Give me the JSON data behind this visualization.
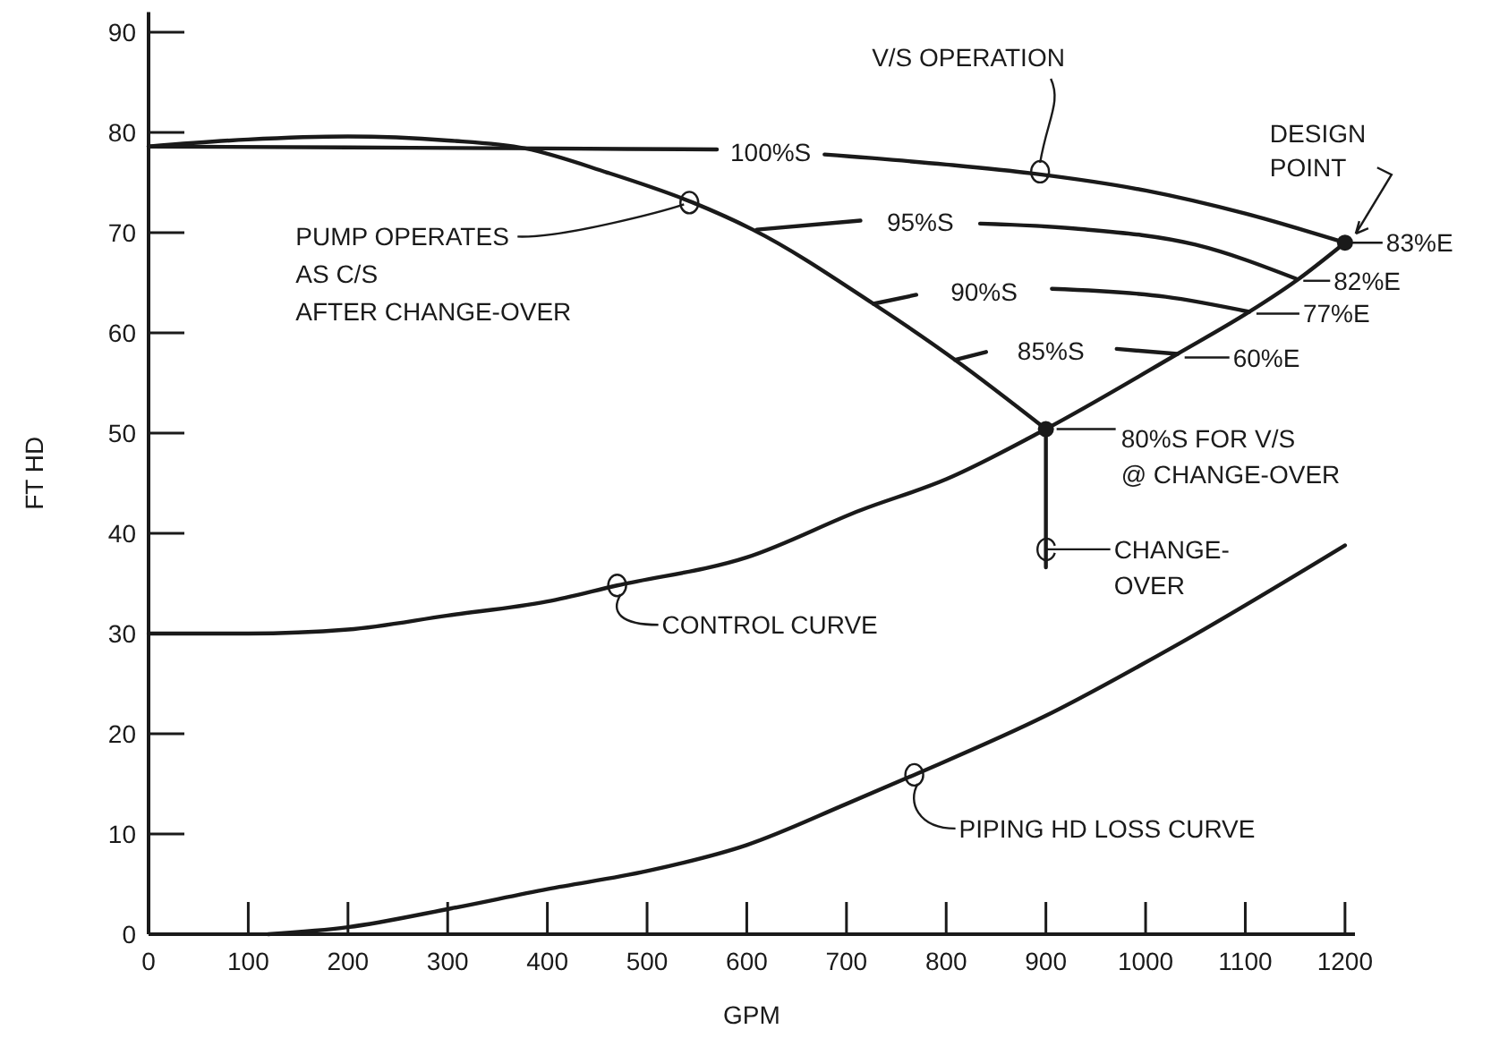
{
  "chart_data": {
    "type": "line",
    "xlabel": "GPM",
    "ylabel": "FT HD",
    "xlim": [
      0,
      1210
    ],
    "ylim": [
      0,
      92
    ],
    "xticks": [
      0,
      100,
      200,
      300,
      400,
      500,
      600,
      700,
      800,
      900,
      1000,
      1100,
      1200
    ],
    "yticks": [
      0,
      10,
      20,
      30,
      40,
      50,
      60,
      70,
      80,
      90
    ],
    "grid": false,
    "legend": false,
    "marker": "none",
    "line_style": "solid",
    "series": [
      {
        "color": "#1a1a1a",
        "x": [
          0,
          100,
          200,
          300,
          378,
          460,
          546,
          606,
          727,
          809,
          900
        ],
        "values": [
          78.6,
          79.3,
          79.6,
          79.2,
          78.4,
          76,
          73,
          70.3,
          62.9,
          57.3,
          50.4
        ]
      },
      {
        "name": "100%S",
        "color": "#1a1a1a",
        "x": [
          0,
          200,
          400,
          570,
          624,
          678,
          800,
          887,
          1000,
          1100,
          1200
        ],
        "values": [
          78.6,
          78.5,
          78.4,
          78.3,
          null,
          77.8,
          76.8,
          75.9,
          74.2,
          71.9,
          69
        ]
      },
      {
        "name": "95%S",
        "color": "#1a1a1a",
        "x": [
          610,
          714,
          774,
          834,
          930,
          1050,
          1151
        ],
        "values": [
          70.3,
          71.2,
          null,
          70.9,
          70.4,
          68.8,
          65.4
        ]
      },
      {
        "name": "90%S",
        "color": "#1a1a1a",
        "x": [
          727,
          770,
          838,
          906,
          1020,
          1104
        ],
        "values": [
          62.9,
          63.8,
          null,
          64.4,
          63.6,
          62.1
        ]
      },
      {
        "name": "85%S",
        "color": "#1a1a1a",
        "x": [
          809,
          840,
          905,
          971,
          1032
        ],
        "values": [
          57.3,
          58.1,
          null,
          58.4,
          57.9
        ]
      },
      {
        "color": "#1a1a1a",
        "x": [
          0,
          100,
          200,
          300,
          400,
          470,
          600,
          714,
          800,
          900,
          1032,
          1104,
          1151,
          1200
        ],
        "values": [
          30,
          30,
          30.4,
          31.8,
          33.2,
          34.8,
          37.6,
          42.3,
          45.4,
          50.4,
          57.9,
          62.1,
          65.2,
          69
        ]
      },
      {
        "color": "#1a1a1a",
        "x": [
          120,
          200,
          300,
          400,
          500,
          600,
          700,
          768,
          900,
          1032,
          1200
        ],
        "values": [
          0,
          0.7,
          2.5,
          4.5,
          6.3,
          8.9,
          13,
          15.9,
          21.8,
          28.9,
          38.8
        ]
      },
      {
        "color": "#1a1a1a",
        "x": [
          900,
          900
        ],
        "values": [
          50.4,
          36.6
        ]
      },
      {
        "type": "scatter",
        "marker": "circle",
        "color": "#1a1a1a",
        "x": [
          900,
          1200
        ],
        "values": [
          50.4,
          69
        ]
      }
    ],
    "annotations": [
      {
        "text": "V/S OPERATION",
        "x": 887,
        "y": 75.9
      },
      {
        "text": "DESIGN\nPOINT",
        "x": 1200,
        "y": 69
      },
      {
        "text": "PUMP OPERATES\nAS C/S\nAFTER CHANGE-OVER",
        "x": 546,
        "y": 73
      },
      {
        "text": "80%S FOR V/S\n@ CHANGE-OVER",
        "x": 900,
        "y": 50.4
      },
      {
        "text": "CHANGE-\nOVER",
        "x": 900,
        "y": 38.4
      },
      {
        "text": "CONTROL CURVE",
        "x": 470,
        "y": 34.8
      },
      {
        "text": "PIPING HD LOSS CURVE",
        "x": 768,
        "y": 15.9
      },
      {
        "text": "83%E",
        "x": 1200,
        "y": 69
      },
      {
        "text": "82%E",
        "x": 1151,
        "y": 65.2
      },
      {
        "text": "77%E",
        "x": 1104,
        "y": 62.1
      },
      {
        "text": "60%E",
        "x": 1032,
        "y": 57.9
      }
    ]
  }
}
